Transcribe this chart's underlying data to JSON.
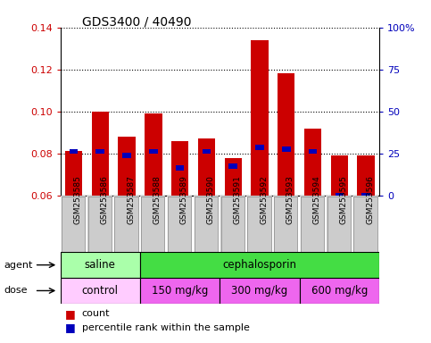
{
  "title": "GDS3400 / 40490",
  "samples": [
    "GSM253585",
    "GSM253586",
    "GSM253587",
    "GSM253588",
    "GSM253589",
    "GSM253590",
    "GSM253591",
    "GSM253592",
    "GSM253593",
    "GSM253594",
    "GSM253595",
    "GSM253596"
  ],
  "count_values": [
    0.081,
    0.1,
    0.088,
    0.099,
    0.086,
    0.087,
    0.078,
    0.134,
    0.118,
    0.092,
    0.079,
    0.079
  ],
  "count_bottom": [
    0.06,
    0.06,
    0.06,
    0.06,
    0.06,
    0.06,
    0.06,
    0.06,
    0.06,
    0.06,
    0.06,
    0.06
  ],
  "percentile_values": [
    0.081,
    0.081,
    0.079,
    0.081,
    0.073,
    0.081,
    0.074,
    0.083,
    0.082,
    0.081,
    0.06,
    0.06
  ],
  "ylim": [
    0.06,
    0.14
  ],
  "yticks": [
    0.06,
    0.08,
    0.1,
    0.12,
    0.14
  ],
  "y2ticks": [
    0,
    25,
    50,
    75,
    100
  ],
  "y2labels": [
    "0",
    "25",
    "50",
    "75",
    "100%"
  ],
  "bar_color": "#cc0000",
  "percentile_color": "#0000bb",
  "agent_groups": [
    {
      "label": "saline",
      "start": 0,
      "end": 3,
      "color": "#aaffaa"
    },
    {
      "label": "cephalosporin",
      "start": 3,
      "end": 12,
      "color": "#44dd44"
    }
  ],
  "dose_groups": [
    {
      "label": "control",
      "start": 0,
      "end": 3,
      "color": "#ffccff"
    },
    {
      "label": "150 mg/kg",
      "start": 3,
      "end": 6,
      "color": "#ee66ee"
    },
    {
      "label": "300 mg/kg",
      "start": 6,
      "end": 9,
      "color": "#ee66ee"
    },
    {
      "label": "600 mg/kg",
      "start": 9,
      "end": 12,
      "color": "#ee66ee"
    }
  ],
  "legend_count_label": "count",
  "legend_percentile_label": "percentile rank within the sample",
  "tick_label_color": "#cc0000",
  "y2tick_label_color": "#0000bb",
  "sample_bg_color": "#cccccc",
  "sample_bg_alt_color": "#bbbbbb"
}
